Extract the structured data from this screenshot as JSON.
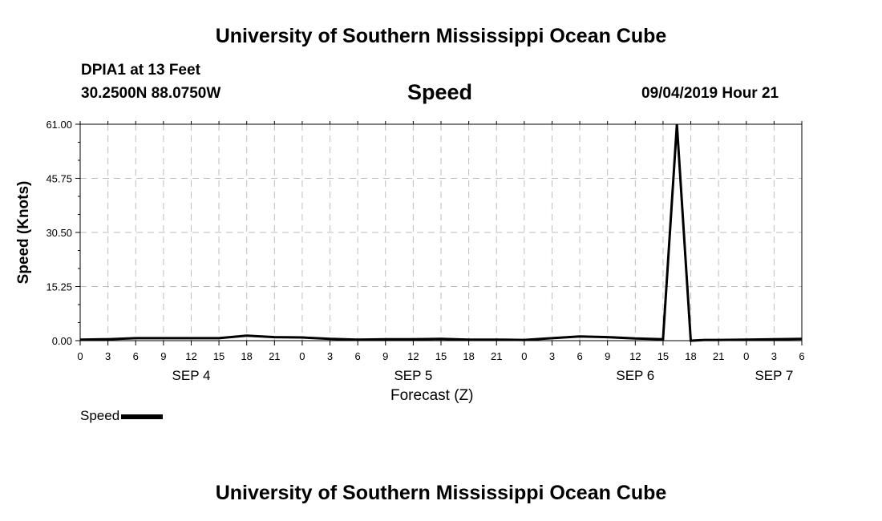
{
  "header": {
    "title_top": "University of Southern Mississippi Ocean Cube",
    "station": "DPIA1 at 13 Feet",
    "location": "30.2500N 88.0750W",
    "variable": "Speed",
    "issued": "09/04/2019 Hour 21",
    "title_bottom": "University of Southern Mississippi Ocean Cube"
  },
  "chart_data": {
    "type": "line",
    "title": "Speed",
    "xlabel": "Forecast (Z)",
    "ylabel": "Speed (Knots)",
    "ylim": [
      0,
      61
    ],
    "y_ticks": [
      "0.00",
      "15.25",
      "30.50",
      "45.75",
      "61.00"
    ],
    "x_unit": "forecast hour",
    "xlim": [
      0,
      78
    ],
    "x_tick_labels": [
      "0",
      "3",
      "6",
      "9",
      "12",
      "15",
      "18",
      "21",
      "0",
      "3",
      "6",
      "9",
      "12",
      "15",
      "18",
      "21",
      "0",
      "3",
      "6",
      "9",
      "12",
      "15",
      "18",
      "21",
      "0",
      "3",
      "6"
    ],
    "day_labels": [
      {
        "label": "SEP 4",
        "hour": 12
      },
      {
        "label": "SEP 5",
        "hour": 36
      },
      {
        "label": "SEP 6",
        "hour": 60
      },
      {
        "label": "SEP 7",
        "hour": 75
      }
    ],
    "grid": true,
    "series": [
      {
        "name": "Speed",
        "color": "#000000",
        "x": [
          0,
          3,
          6,
          9,
          12,
          15,
          18,
          21,
          24,
          27,
          30,
          33,
          36,
          39,
          42,
          45,
          48,
          51,
          54,
          57,
          60,
          63,
          64.5,
          66,
          67.5,
          69,
          72,
          75,
          78
        ],
        "y": [
          0.3,
          0.4,
          0.7,
          0.7,
          0.7,
          0.7,
          1.4,
          1.0,
          0.9,
          0.5,
          0.3,
          0.4,
          0.4,
          0.5,
          0.3,
          0.3,
          0.2,
          0.7,
          1.2,
          1.0,
          0.6,
          0.4,
          61,
          0,
          0.2,
          0.2,
          0.3,
          0.4,
          0.5
        ]
      }
    ],
    "legend": {
      "label": "Speed",
      "position": "bottom-left"
    }
  }
}
